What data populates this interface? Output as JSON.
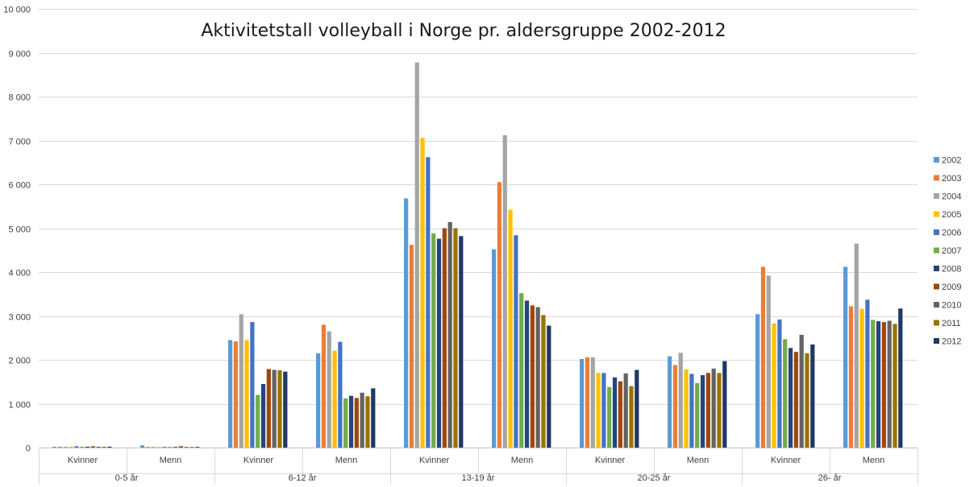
{
  "chart_data": {
    "type": "bar",
    "title": "Aktivitetstall volleyball i Norge pr. aldersgruppe 2002-2012",
    "xlabel": "",
    "ylabel": "",
    "ylim": [
      0,
      10000
    ],
    "y_ticks": [
      {
        "value": 0,
        "label": "0"
      },
      {
        "value": 1000,
        "label": "1 000"
      },
      {
        "value": 2000,
        "label": "2 000"
      },
      {
        "value": 3000,
        "label": "3 000"
      },
      {
        "value": 4000,
        "label": "4 000"
      },
      {
        "value": 5000,
        "label": "5 000"
      },
      {
        "value": 6000,
        "label": "6 000"
      },
      {
        "value": 7000,
        "label": "7 000"
      },
      {
        "value": 8000,
        "label": "8 000"
      },
      {
        "value": 9000,
        "label": "9 000"
      },
      {
        "value": 10000,
        "label": "10 000"
      }
    ],
    "grid": true,
    "legend_position": "right",
    "groups": [
      "0-5 år",
      "6-12 år",
      "13-19 år",
      "20-25 år",
      "26- år"
    ],
    "categories": [
      {
        "group": "0-5 år",
        "label": "Kvinner"
      },
      {
        "group": "0-5 år",
        "label": "Menn"
      },
      {
        "group": "6-12 år",
        "label": "Kvinner"
      },
      {
        "group": "6-12 år",
        "label": "Menn"
      },
      {
        "group": "13-19 år",
        "label": "Kvinner"
      },
      {
        "group": "13-19 år",
        "label": "Menn"
      },
      {
        "group": "20-25 år",
        "label": "Kvinner"
      },
      {
        "group": "20-25 år",
        "label": "Menn"
      },
      {
        "group": "26- år",
        "label": "Kvinner"
      },
      {
        "group": "26- år",
        "label": "Menn"
      }
    ],
    "series": [
      {
        "name": "2002",
        "color": "#5B9BD5",
        "values": [
          20,
          50,
          2450,
          2150,
          5680,
          4520,
          2020,
          2080,
          3040,
          4120
        ]
      },
      {
        "name": "2003",
        "color": "#ED7D31",
        "values": [
          20,
          15,
          2420,
          2800,
          4620,
          6050,
          2060,
          1880,
          4120,
          3220
        ]
      },
      {
        "name": "2004",
        "color": "#A5A5A5",
        "values": [
          20,
          15,
          3040,
          2650,
          8780,
          7120,
          2060,
          2160,
          3920,
          4650
        ]
      },
      {
        "name": "2005",
        "color": "#FFC000",
        "values": [
          20,
          15,
          2450,
          2210,
          7060,
          5420,
          1700,
          1780,
          2830,
          3160
        ]
      },
      {
        "name": "2006",
        "color": "#4472C4",
        "values": [
          30,
          15,
          2860,
          2410,
          6620,
          4840,
          1700,
          1680,
          2920,
          3370
        ]
      },
      {
        "name": "2007",
        "color": "#70AD47",
        "values": [
          20,
          15,
          1200,
          1120,
          4880,
          3520,
          1380,
          1470,
          2470,
          2910
        ]
      },
      {
        "name": "2008",
        "color": "#264478",
        "values": [
          20,
          15,
          1450,
          1180,
          4760,
          3350,
          1600,
          1650,
          2270,
          2880
        ]
      },
      {
        "name": "2009",
        "color": "#9E480E",
        "values": [
          30,
          30,
          1790,
          1130,
          5000,
          3240,
          1510,
          1700,
          2180,
          2860
        ]
      },
      {
        "name": "2010",
        "color": "#636363",
        "values": [
          20,
          15,
          1770,
          1250,
          5140,
          3200,
          1690,
          1800,
          2570,
          2890
        ]
      },
      {
        "name": "2011",
        "color": "#997300",
        "values": [
          20,
          15,
          1760,
          1170,
          5000,
          3020,
          1400,
          1700,
          2150,
          2820
        ]
      },
      {
        "name": "2012",
        "color": "#1F3864",
        "values": [
          20,
          15,
          1730,
          1350,
          4820,
          2780,
          1770,
          1970,
          2350,
          3170
        ]
      }
    ]
  }
}
